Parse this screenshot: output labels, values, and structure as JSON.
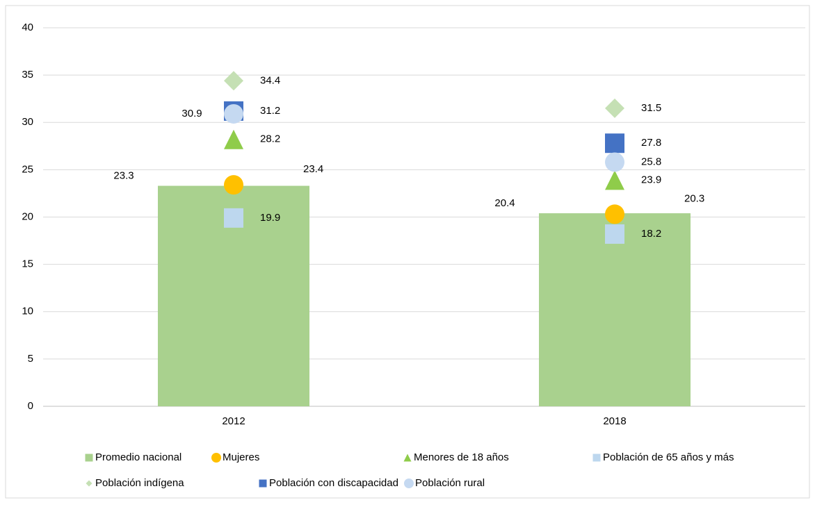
{
  "chart_data": {
    "type": "bar_scatter",
    "categories": [
      "2012",
      "2018"
    ],
    "ylim": [
      0,
      40
    ],
    "yticks": [
      0,
      5,
      10,
      15,
      20,
      25,
      30,
      35,
      40
    ],
    "grid": true,
    "series": [
      {
        "name": "Promedio nacional",
        "color": "#a9d18e",
        "marker": "bar",
        "values": [
          23.3,
          20.4
        ]
      },
      {
        "name": "Mujeres",
        "color": "#ffc000",
        "marker": "circle",
        "values": [
          23.4,
          20.3
        ]
      },
      {
        "name": "Menores de 18 años",
        "color": "#8fcc4a",
        "marker": "triangle",
        "values": [
          28.2,
          23.9
        ]
      },
      {
        "name": "Población de 65 años y más",
        "color": "#bdd7ee",
        "marker": "square",
        "values": [
          19.9,
          18.2
        ]
      },
      {
        "name": "Población indígena",
        "color": "#c5e0b4",
        "marker": "diamond",
        "values": [
          34.4,
          31.5
        ]
      },
      {
        "name": "Población con discapacidad",
        "color": "#4472c4",
        "marker": "square",
        "values": [
          31.2,
          27.8
        ]
      },
      {
        "name": "Población rural",
        "color": "#c5d9f1",
        "marker": "circle",
        "values": [
          30.9,
          25.8
        ]
      }
    ],
    "legend": "bottom"
  }
}
